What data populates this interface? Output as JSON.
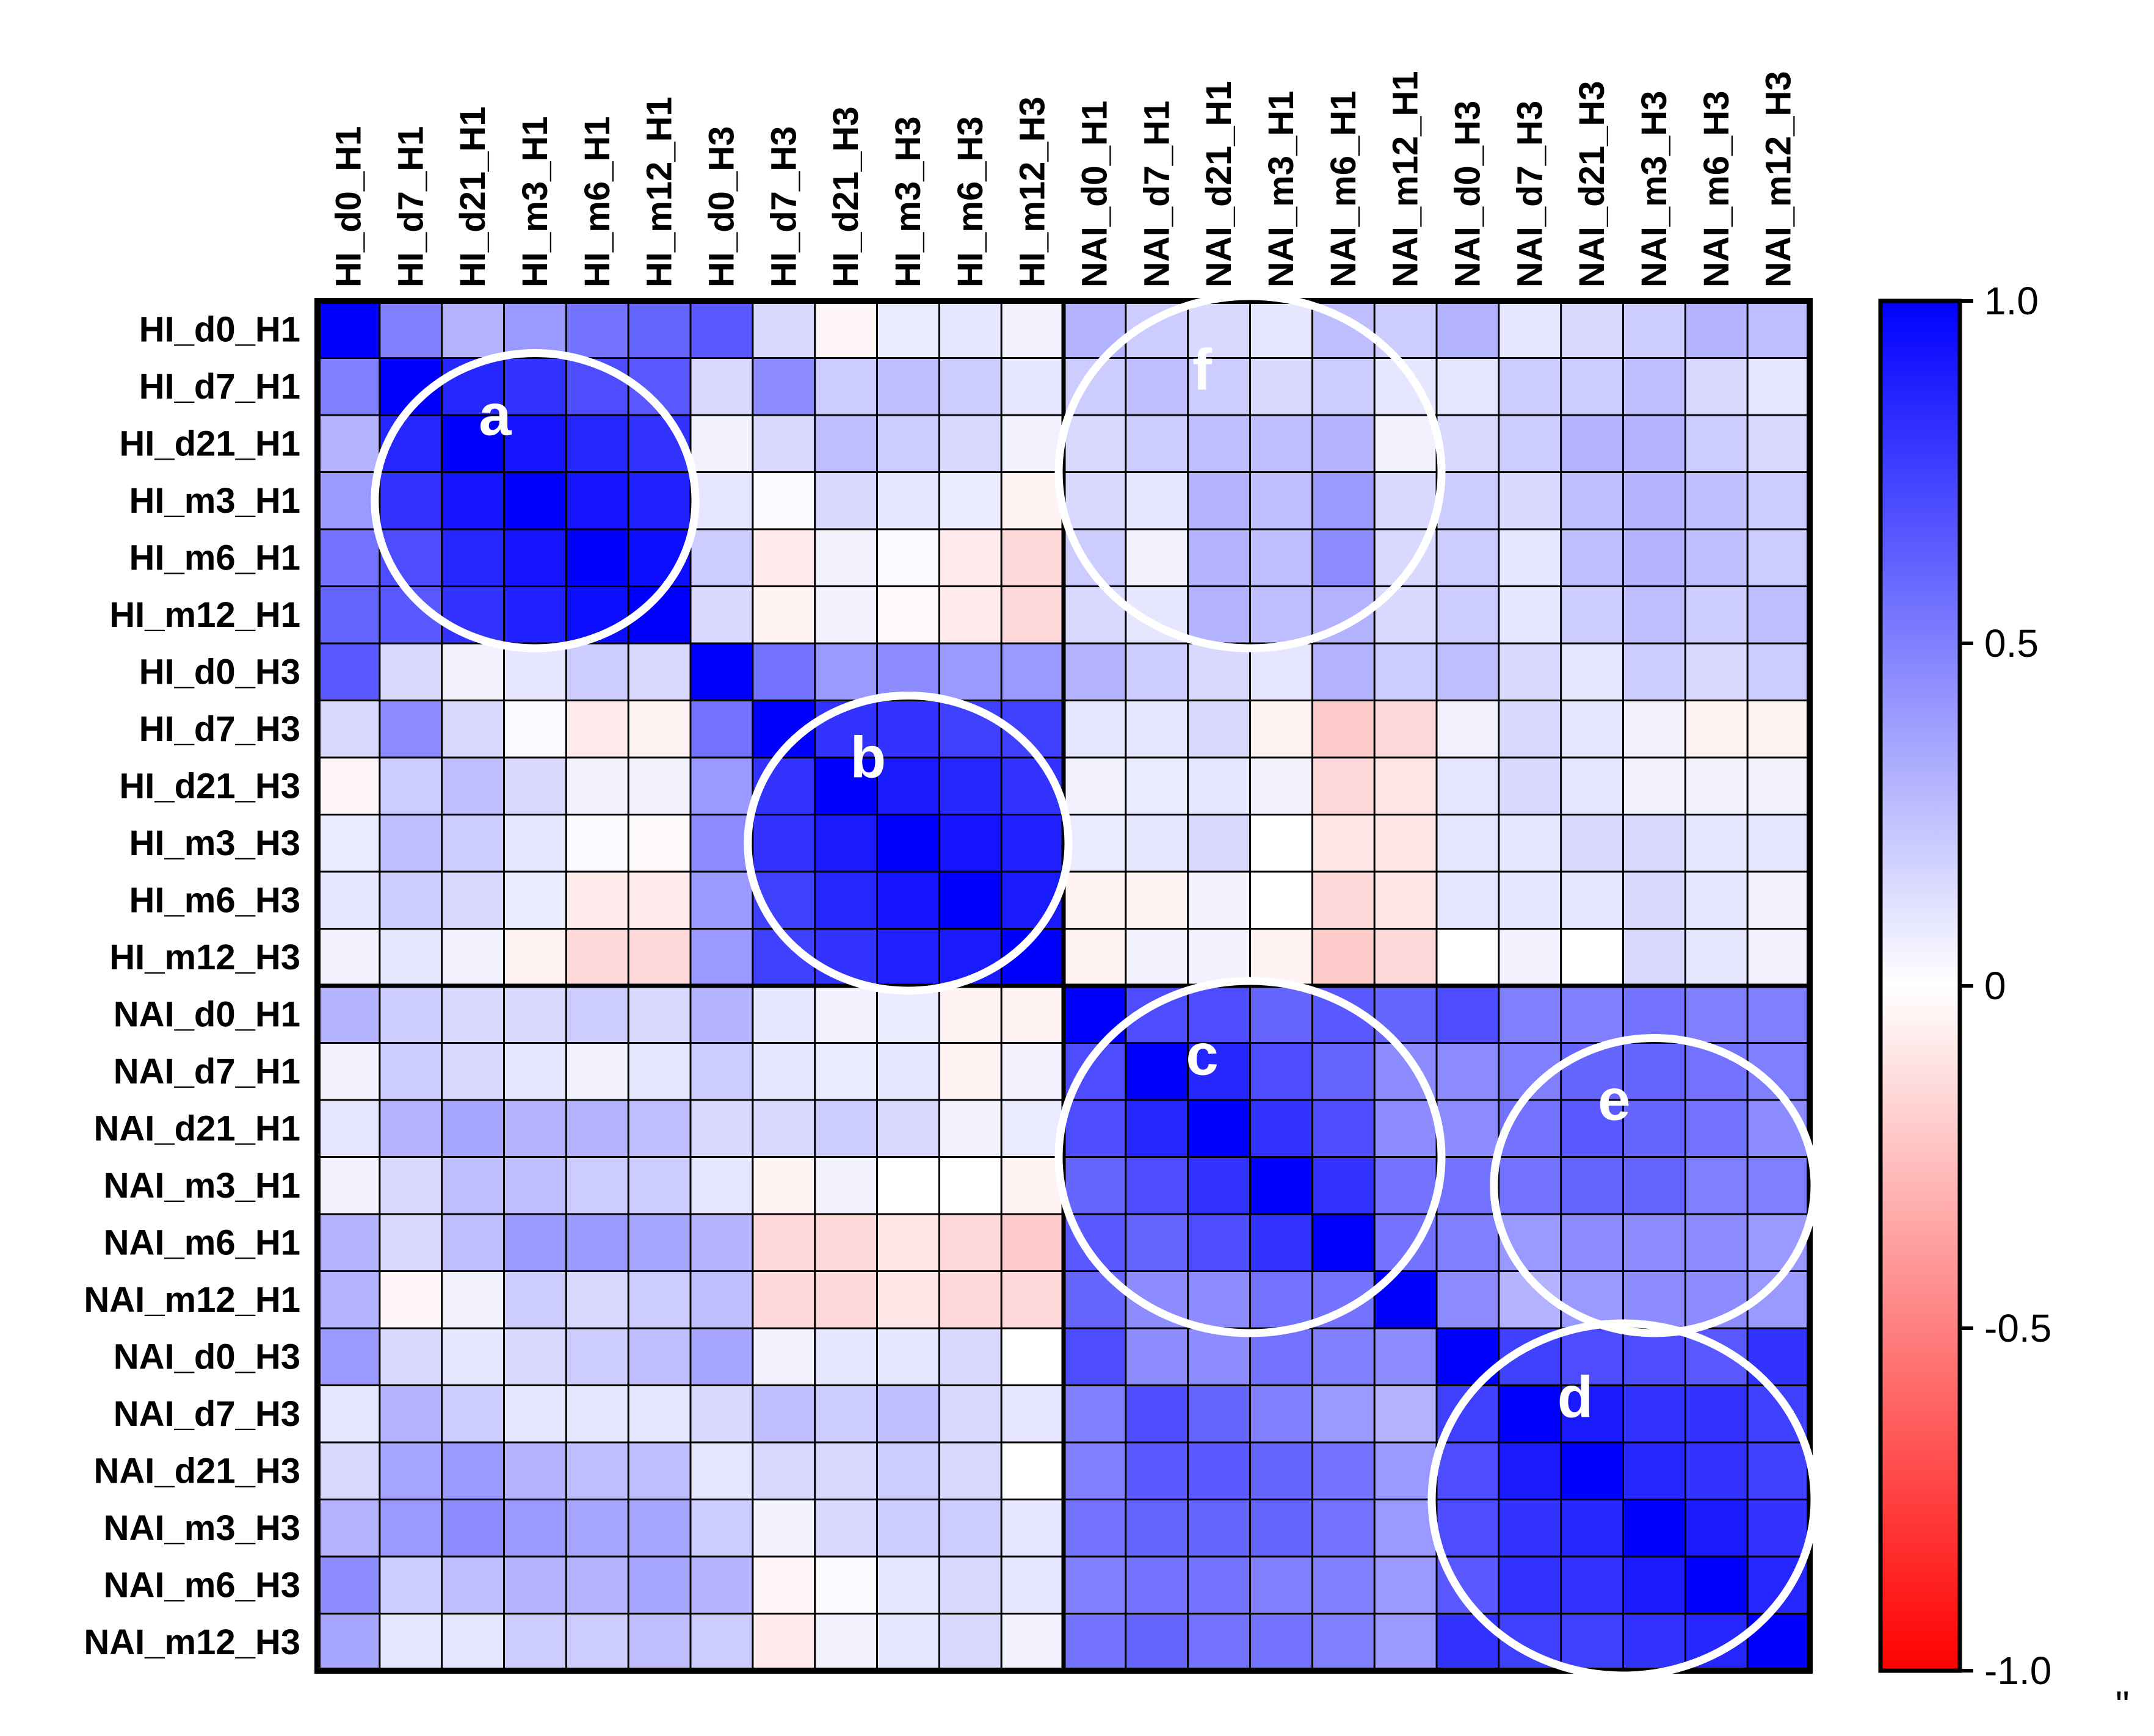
{
  "chart_data": {
    "type": "heatmap",
    "title": "",
    "labels": [
      "HI_d0_H1",
      "HI_d7_H1",
      "HI_d21_H1",
      "HI_m3_H1",
      "HI_m6_H1",
      "HI_m12_H1",
      "HI_d0_H3",
      "HI_d7_H3",
      "HI_d21_H3",
      "HI_m3_H3",
      "HI_m6_H3",
      "HI_m12_H3",
      "NAI_d0_H1",
      "NAI_d7_H1",
      "NAI_d21_H1",
      "NAI_m3_H1",
      "NAI_m6_H1",
      "NAI_m12_H1",
      "NAI_d0_H3",
      "NAI_d7_H3",
      "NAI_d21_H3",
      "NAI_m3_H3",
      "NAI_m6_H3",
      "NAI_m12_H3"
    ],
    "values": [
      [
        1.0,
        0.5,
        0.3,
        0.4,
        0.55,
        0.6,
        0.65,
        0.15,
        -0.03,
        0.08,
        0.1,
        0.05,
        0.3,
        0.2,
        0.15,
        0.1,
        0.25,
        0.2,
        0.3,
        0.1,
        0.15,
        0.2,
        0.3,
        0.25
      ],
      [
        0.5,
        1.0,
        0.85,
        0.8,
        0.7,
        0.65,
        0.15,
        0.45,
        0.2,
        0.25,
        0.2,
        0.1,
        0.2,
        0.25,
        0.2,
        0.15,
        0.2,
        0.1,
        0.1,
        0.2,
        0.2,
        0.25,
        0.15,
        0.1
      ],
      [
        0.3,
        0.85,
        1.0,
        0.92,
        0.85,
        0.8,
        0.05,
        0.15,
        0.25,
        0.2,
        0.15,
        0.05,
        0.15,
        0.2,
        0.25,
        0.25,
        0.3,
        0.05,
        0.15,
        0.2,
        0.3,
        0.3,
        0.2,
        0.15
      ],
      [
        0.4,
        0.8,
        0.92,
        1.0,
        0.92,
        0.88,
        0.1,
        0.02,
        0.15,
        0.1,
        0.08,
        -0.05,
        0.15,
        0.1,
        0.3,
        0.25,
        0.4,
        0.15,
        0.2,
        0.15,
        0.25,
        0.3,
        0.25,
        0.2
      ],
      [
        0.55,
        0.7,
        0.85,
        0.92,
        1.0,
        0.95,
        0.2,
        -0.08,
        0.05,
        0.02,
        -0.08,
        -0.15,
        0.2,
        0.05,
        0.3,
        0.25,
        0.45,
        0.15,
        0.2,
        0.1,
        0.25,
        0.3,
        0.25,
        0.2
      ],
      [
        0.6,
        0.65,
        0.8,
        0.88,
        0.95,
        1.0,
        0.15,
        -0.05,
        0.05,
        -0.02,
        -0.08,
        -0.15,
        0.15,
        0.1,
        0.3,
        0.25,
        0.3,
        0.15,
        0.2,
        0.1,
        0.2,
        0.25,
        0.2,
        0.25
      ],
      [
        0.65,
        0.15,
        0.05,
        0.1,
        0.2,
        0.15,
        1.0,
        0.55,
        0.4,
        0.45,
        0.4,
        0.4,
        0.3,
        0.2,
        0.15,
        0.1,
        0.3,
        0.2,
        0.25,
        0.15,
        0.1,
        0.2,
        0.15,
        0.2
      ],
      [
        0.15,
        0.45,
        0.15,
        0.02,
        -0.08,
        -0.05,
        0.55,
        1.0,
        0.8,
        0.8,
        0.75,
        0.75,
        0.1,
        0.1,
        0.15,
        -0.05,
        -0.2,
        -0.15,
        0.05,
        0.15,
        0.1,
        0.05,
        -0.05,
        -0.05
      ],
      [
        -0.03,
        0.2,
        0.25,
        0.15,
        0.05,
        0.05,
        0.4,
        0.8,
        1.0,
        0.9,
        0.85,
        0.8,
        0.05,
        0.08,
        0.1,
        0.05,
        -0.15,
        -0.1,
        0.1,
        0.15,
        0.1,
        0.05,
        0.05,
        0.05
      ],
      [
        0.08,
        0.25,
        0.2,
        0.1,
        0.02,
        -0.02,
        0.45,
        0.8,
        0.9,
        1.0,
        0.92,
        0.88,
        0.08,
        0.1,
        0.15,
        0.0,
        -0.1,
        -0.1,
        0.1,
        0.1,
        0.15,
        0.15,
        0.1,
        0.1
      ],
      [
        0.1,
        0.2,
        0.15,
        0.08,
        -0.08,
        -0.08,
        0.4,
        0.75,
        0.85,
        0.92,
        1.0,
        0.9,
        -0.05,
        -0.05,
        0.05,
        0.0,
        -0.15,
        -0.1,
        0.1,
        0.1,
        0.1,
        0.15,
        0.1,
        0.05
      ],
      [
        0.05,
        0.1,
        0.05,
        -0.05,
        -0.15,
        -0.15,
        0.4,
        0.75,
        0.8,
        0.88,
        0.9,
        1.0,
        -0.05,
        0.05,
        0.05,
        -0.05,
        -0.2,
        -0.15,
        0.0,
        0.05,
        0.0,
        0.15,
        0.1,
        0.05
      ],
      [
        0.3,
        0.2,
        0.15,
        0.15,
        0.2,
        0.15,
        0.3,
        0.1,
        0.05,
        0.08,
        -0.05,
        -0.05,
        1.0,
        0.7,
        0.7,
        0.6,
        0.65,
        0.6,
        0.7,
        0.5,
        0.5,
        0.55,
        0.5,
        0.5
      ],
      [
        0.05,
        0.2,
        0.15,
        0.1,
        0.05,
        0.1,
        0.2,
        0.1,
        0.08,
        0.1,
        -0.05,
        0.05,
        0.7,
        1.0,
        0.85,
        0.7,
        0.6,
        0.45,
        0.45,
        0.5,
        0.6,
        0.6,
        0.55,
        0.5
      ],
      [
        0.1,
        0.3,
        0.35,
        0.3,
        0.3,
        0.25,
        0.15,
        0.15,
        0.2,
        0.15,
        0.05,
        0.08,
        0.7,
        0.85,
        1.0,
        0.8,
        0.7,
        0.45,
        0.45,
        0.55,
        0.65,
        0.6,
        0.55,
        0.45
      ],
      [
        0.05,
        0.15,
        0.25,
        0.25,
        0.2,
        0.2,
        0.1,
        -0.05,
        0.05,
        0.0,
        0.0,
        -0.05,
        0.6,
        0.7,
        0.8,
        1.0,
        0.8,
        0.55,
        0.55,
        0.55,
        0.6,
        0.6,
        0.5,
        0.5
      ],
      [
        0.3,
        0.15,
        0.25,
        0.4,
        0.4,
        0.35,
        0.3,
        -0.15,
        -0.15,
        -0.1,
        -0.15,
        -0.2,
        0.65,
        0.6,
        0.7,
        0.8,
        1.0,
        0.55,
        0.5,
        0.4,
        0.45,
        0.45,
        0.45,
        0.4
      ],
      [
        0.3,
        -0.03,
        0.05,
        0.2,
        0.15,
        0.2,
        0.25,
        -0.15,
        -0.15,
        -0.1,
        -0.15,
        -0.15,
        0.6,
        0.45,
        0.45,
        0.55,
        0.55,
        1.0,
        0.45,
        0.3,
        0.4,
        0.45,
        0.45,
        0.4
      ],
      [
        0.4,
        0.15,
        0.1,
        0.15,
        0.2,
        0.25,
        0.35,
        0.05,
        0.1,
        0.1,
        0.15,
        0.0,
        0.7,
        0.45,
        0.45,
        0.55,
        0.5,
        0.45,
        1.0,
        0.75,
        0.7,
        0.7,
        0.65,
        0.8
      ],
      [
        0.1,
        0.3,
        0.2,
        0.1,
        0.1,
        0.1,
        0.15,
        0.25,
        0.2,
        0.25,
        0.15,
        0.1,
        0.5,
        0.7,
        0.6,
        0.5,
        0.4,
        0.3,
        0.75,
        1.0,
        0.9,
        0.8,
        0.8,
        0.75
      ],
      [
        0.15,
        0.35,
        0.4,
        0.3,
        0.25,
        0.25,
        0.1,
        0.15,
        0.15,
        0.2,
        0.15,
        0.0,
        0.5,
        0.65,
        0.65,
        0.6,
        0.55,
        0.4,
        0.7,
        0.9,
        1.0,
        0.85,
        0.8,
        0.75
      ],
      [
        0.3,
        0.4,
        0.45,
        0.4,
        0.35,
        0.35,
        0.2,
        0.05,
        0.15,
        0.2,
        0.2,
        0.1,
        0.55,
        0.6,
        0.6,
        0.6,
        0.55,
        0.4,
        0.7,
        0.8,
        0.85,
        1.0,
        0.9,
        0.8
      ],
      [
        0.45,
        0.2,
        0.25,
        0.3,
        0.3,
        0.35,
        0.3,
        -0.03,
        0.02,
        0.1,
        0.15,
        0.1,
        0.5,
        0.55,
        0.55,
        0.5,
        0.5,
        0.4,
        0.65,
        0.8,
        0.8,
        0.9,
        1.0,
        0.85
      ],
      [
        0.35,
        0.1,
        0.1,
        0.2,
        0.2,
        0.25,
        0.2,
        -0.08,
        0.05,
        0.1,
        0.15,
        0.05,
        0.55,
        0.6,
        0.55,
        0.55,
        0.5,
        0.4,
        0.8,
        0.75,
        0.75,
        0.8,
        0.85,
        1.0
      ]
    ],
    "colorbar": {
      "range": [
        -1.0,
        1.0
      ],
      "ticks": [
        1.0,
        0.5,
        0,
        -0.5,
        -1.0
      ],
      "tick_labels": [
        "1.0",
        "0.5",
        "0",
        "-0.5",
        "-1.0"
      ],
      "colors": {
        "high": "#0000ff",
        "mid": "#ffffff",
        "low": "#ff0000"
      }
    },
    "annotations": [
      {
        "label": "a",
        "rows": [
          1,
          5
        ],
        "cols": [
          1,
          5
        ]
      },
      {
        "label": "b",
        "rows": [
          7,
          11
        ],
        "cols": [
          7,
          11
        ]
      },
      {
        "label": "c",
        "rows": [
          12,
          17
        ],
        "cols": [
          12,
          17
        ]
      },
      {
        "label": "d",
        "rows": [
          18,
          23
        ],
        "cols": [
          18,
          23
        ]
      },
      {
        "label": "e",
        "rows": [
          13,
          17
        ],
        "cols": [
          19,
          23
        ]
      },
      {
        "label": "f",
        "rows": [
          0,
          5
        ],
        "cols": [
          12,
          17
        ]
      }
    ],
    "annotation_color": "#ffffff",
    "grid": true,
    "stray_mark": "\""
  }
}
